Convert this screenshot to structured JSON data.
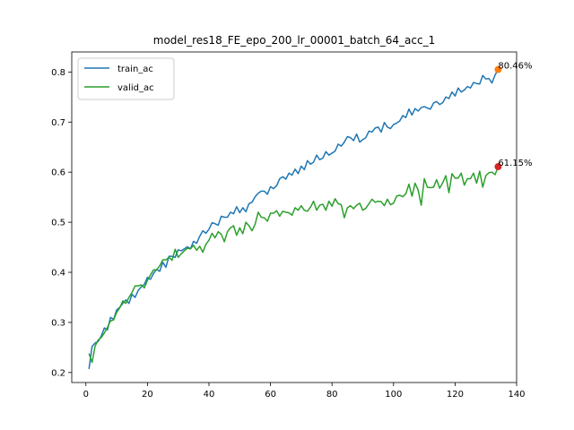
{
  "chart_data": {
    "type": "line",
    "title": "model_res18_FE_epo_200_lr_00001_batch_64_acc_1",
    "xlabel": "",
    "ylabel": "",
    "xlim": [
      -4.6,
      140
    ],
    "ylim": [
      0.18,
      0.84
    ],
    "x_ticks": [
      0,
      20,
      40,
      60,
      80,
      100,
      120,
      140
    ],
    "y_ticks": [
      0.2,
      0.3,
      0.4,
      0.5,
      0.6,
      0.7,
      0.8
    ],
    "grid": false,
    "legend_position": "top-left",
    "series": [
      {
        "name": "train_ac",
        "color": "#1f77b4",
        "x": [
          1,
          2,
          3,
          4,
          5,
          6,
          7,
          8,
          9,
          10,
          11,
          12,
          13,
          14,
          15,
          16,
          17,
          18,
          19,
          20,
          21,
          22,
          23,
          24,
          25,
          26,
          27,
          28,
          29,
          30,
          31,
          32,
          33,
          34,
          35,
          36,
          37,
          38,
          39,
          40,
          41,
          42,
          43,
          44,
          45,
          46,
          47,
          48,
          49,
          50,
          51,
          52,
          53,
          54,
          55,
          56,
          57,
          58,
          59,
          60,
          61,
          62,
          63,
          64,
          65,
          66,
          67,
          68,
          69,
          70,
          71,
          72,
          73,
          74,
          75,
          76,
          77,
          78,
          79,
          80,
          81,
          82,
          83,
          84,
          85,
          86,
          87,
          88,
          89,
          90,
          91,
          92,
          93,
          94,
          95,
          96,
          97,
          98,
          99,
          100,
          101,
          102,
          103,
          104,
          105,
          106,
          107,
          108,
          109,
          110,
          111,
          112,
          113,
          114,
          115,
          116,
          117,
          118,
          119,
          120,
          121,
          122,
          123,
          124,
          125,
          126,
          127,
          128,
          129,
          130,
          131,
          132,
          133,
          134
        ],
        "values": [
          0.207,
          0.252,
          0.259,
          0.262,
          0.273,
          0.289,
          0.285,
          0.31,
          0.306,
          0.325,
          0.33,
          0.338,
          0.345,
          0.338,
          0.356,
          0.35,
          0.364,
          0.371,
          0.376,
          0.39,
          0.386,
          0.398,
          0.406,
          0.402,
          0.42,
          0.41,
          0.432,
          0.432,
          0.43,
          0.445,
          0.443,
          0.447,
          0.451,
          0.447,
          0.462,
          0.458,
          0.472,
          0.483,
          0.478,
          0.486,
          0.499,
          0.497,
          0.494,
          0.512,
          0.51,
          0.51,
          0.52,
          0.517,
          0.531,
          0.519,
          0.529,
          0.521,
          0.537,
          0.54,
          0.551,
          0.558,
          0.562,
          0.562,
          0.556,
          0.571,
          0.567,
          0.573,
          0.587,
          0.591,
          0.586,
          0.598,
          0.594,
          0.606,
          0.597,
          0.612,
          0.605,
          0.623,
          0.616,
          0.62,
          0.634,
          0.625,
          0.628,
          0.641,
          0.634,
          0.638,
          0.642,
          0.656,
          0.652,
          0.66,
          0.671,
          0.669,
          0.663,
          0.676,
          0.66,
          0.665,
          0.669,
          0.682,
          0.68,
          0.688,
          0.69,
          0.68,
          0.699,
          0.69,
          0.687,
          0.695,
          0.698,
          0.702,
          0.713,
          0.709,
          0.726,
          0.714,
          0.727,
          0.722,
          0.729,
          0.731,
          0.728,
          0.726,
          0.738,
          0.741,
          0.735,
          0.739,
          0.75,
          0.747,
          0.76,
          0.752,
          0.768,
          0.76,
          0.764,
          0.771,
          0.768,
          0.779,
          0.777,
          0.776,
          0.793,
          0.786,
          0.787,
          0.778,
          0.794,
          0.805
        ]
      },
      {
        "name": "valid_ac",
        "color": "#2ca02c",
        "x": [
          1,
          2,
          3,
          4,
          5,
          6,
          7,
          8,
          9,
          10,
          11,
          12,
          13,
          14,
          15,
          16,
          17,
          18,
          19,
          20,
          21,
          22,
          23,
          24,
          25,
          26,
          27,
          28,
          29,
          30,
          31,
          32,
          33,
          34,
          35,
          36,
          37,
          38,
          39,
          40,
          41,
          42,
          43,
          44,
          45,
          46,
          47,
          48,
          49,
          50,
          51,
          52,
          53,
          54,
          55,
          56,
          57,
          58,
          59,
          60,
          61,
          62,
          63,
          64,
          65,
          66,
          67,
          68,
          69,
          70,
          71,
          72,
          73,
          74,
          75,
          76,
          77,
          78,
          79,
          80,
          81,
          82,
          83,
          84,
          85,
          86,
          87,
          88,
          89,
          90,
          91,
          92,
          93,
          94,
          95,
          96,
          97,
          98,
          99,
          100,
          101,
          102,
          103,
          104,
          105,
          106,
          107,
          108,
          109,
          110,
          111,
          112,
          113,
          114,
          115,
          116,
          117,
          118,
          119,
          120,
          121,
          122,
          123,
          124,
          125,
          126,
          127,
          128,
          129,
          130,
          131,
          132,
          133,
          134
        ],
        "values": [
          0.238,
          0.22,
          0.253,
          0.265,
          0.27,
          0.279,
          0.29,
          0.303,
          0.305,
          0.32,
          0.329,
          0.343,
          0.338,
          0.35,
          0.36,
          0.373,
          0.373,
          0.375,
          0.369,
          0.384,
          0.395,
          0.405,
          0.405,
          0.413,
          0.425,
          0.425,
          0.43,
          0.424,
          0.446,
          0.43,
          0.437,
          0.443,
          0.448,
          0.447,
          0.454,
          0.444,
          0.452,
          0.44,
          0.456,
          0.464,
          0.478,
          0.469,
          0.481,
          0.476,
          0.461,
          0.481,
          0.489,
          0.493,
          0.474,
          0.489,
          0.477,
          0.5,
          0.493,
          0.483,
          0.496,
          0.52,
          0.51,
          0.509,
          0.502,
          0.518,
          0.518,
          0.523,
          0.512,
          0.522,
          0.52,
          0.519,
          0.514,
          0.529,
          0.524,
          0.533,
          0.524,
          0.522,
          0.53,
          0.542,
          0.524,
          0.534,
          0.536,
          0.524,
          0.542,
          0.532,
          0.547,
          0.537,
          0.535,
          0.509,
          0.529,
          0.533,
          0.527,
          0.534,
          0.538,
          0.524,
          0.528,
          0.537,
          0.546,
          0.54,
          0.542,
          0.541,
          0.533,
          0.546,
          0.535,
          0.538,
          0.552,
          0.554,
          0.551,
          0.557,
          0.576,
          0.552,
          0.578,
          0.564,
          0.534,
          0.587,
          0.57,
          0.569,
          0.57,
          0.585,
          0.568,
          0.579,
          0.593,
          0.559,
          0.597,
          0.588,
          0.588,
          0.598,
          0.574,
          0.587,
          0.587,
          0.598,
          0.578,
          0.602,
          0.57,
          0.593,
          0.599,
          0.6,
          0.595,
          0.611
        ]
      }
    ],
    "markers": [
      {
        "series": "train_ac",
        "x": 134,
        "y": 0.805,
        "color": "#ff7f0e",
        "label": "80.46%"
      },
      {
        "series": "valid_ac",
        "x": 134,
        "y": 0.611,
        "color": "#d62728",
        "label": "61.15%"
      }
    ]
  }
}
